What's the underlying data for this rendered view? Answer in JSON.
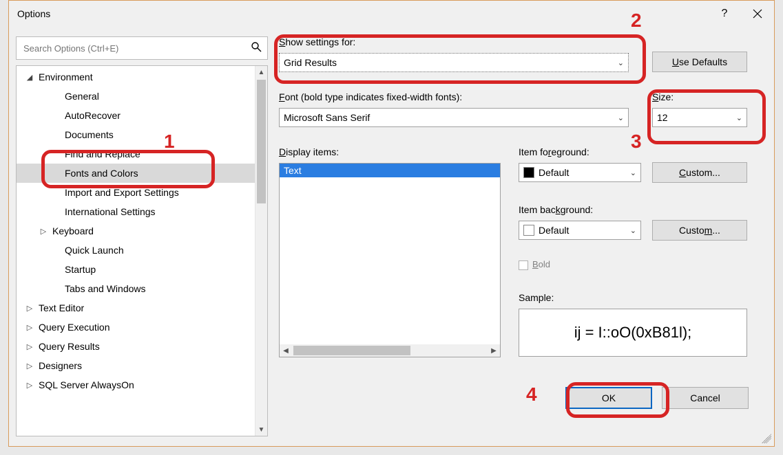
{
  "window": {
    "title": "Options"
  },
  "search": {
    "placeholder": "Search Options (Ctrl+E)"
  },
  "tree": {
    "items": [
      {
        "label": "Environment",
        "level": 0,
        "arrow": "down",
        "selected": false
      },
      {
        "label": "General",
        "level": "sub"
      },
      {
        "label": "AutoRecover",
        "level": "sub"
      },
      {
        "label": "Documents",
        "level": "sub"
      },
      {
        "label": "Find and Replace",
        "level": "sub"
      },
      {
        "label": "Fonts and Colors",
        "level": "sub",
        "selected": true
      },
      {
        "label": "Import and Export Settings",
        "level": "sub"
      },
      {
        "label": "International Settings",
        "level": "sub"
      },
      {
        "label": "Keyboard",
        "level": 1,
        "arrow": "right"
      },
      {
        "label": "Quick Launch",
        "level": "sub"
      },
      {
        "label": "Startup",
        "level": "sub"
      },
      {
        "label": "Tabs and Windows",
        "level": "sub"
      },
      {
        "label": "Text Editor",
        "level": 0,
        "arrow": "right"
      },
      {
        "label": "Query Execution",
        "level": 0,
        "arrow": "right"
      },
      {
        "label": "Query Results",
        "level": 0,
        "arrow": "right"
      },
      {
        "label": "Designers",
        "level": 0,
        "arrow": "right"
      },
      {
        "label": "SQL Server AlwaysOn",
        "level": 0,
        "arrow": "right"
      }
    ]
  },
  "panel": {
    "showSettingsLabel": "Show settings for:",
    "showSettingsValue": "Grid Results",
    "useDefaults": "Use Defaults",
    "fontLabel": "Font (bold type indicates fixed-width fonts):",
    "fontValue": "Microsoft Sans Serif",
    "sizeLabel": "Size:",
    "sizeValue": "12",
    "displayItemsLabel": "Display items:",
    "displayItems": [
      "Text"
    ],
    "fgLabel": "Item foreground:",
    "fgValue": "Default",
    "fgSwatch": "#000000",
    "bgLabel": "Item background:",
    "bgValue": "Default",
    "bgSwatch": "#ffffff",
    "customLabel": "Custom...",
    "boldLabel": "Bold",
    "sampleLabel": "Sample:",
    "sampleText": "ij = I::oO(0xB81l);"
  },
  "buttons": {
    "ok": "OK",
    "cancel": "Cancel"
  },
  "annotations": {
    "n1": "1",
    "n2": "2",
    "n3": "3",
    "n4": "4"
  },
  "colors": {
    "dialogBorder": "#d89a5a",
    "selTreeBg": "#d9d9d9",
    "listSelBg": "#2a7de1",
    "annoRed": "#d62424",
    "primaryBorder": "#0a66c2"
  }
}
